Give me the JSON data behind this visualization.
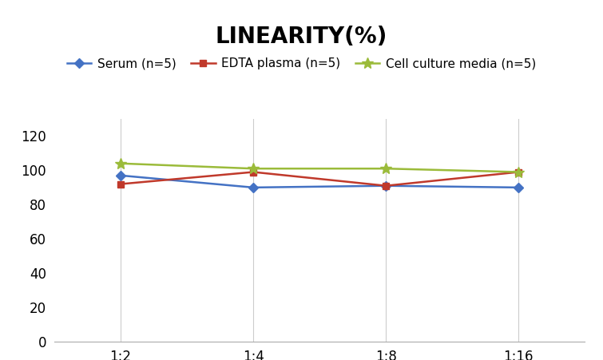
{
  "title": "LINEARITY(%)",
  "x_labels": [
    "1:2",
    "1:4",
    "1:8",
    "1:16"
  ],
  "x_positions": [
    0,
    1,
    2,
    3
  ],
  "series": [
    {
      "label": "Serum (n=5)",
      "values": [
        97,
        90,
        91,
        90
      ],
      "color": "#4472C4",
      "marker": "D",
      "markersize": 6,
      "linewidth": 1.8
    },
    {
      "label": "EDTA plasma (n=5)",
      "values": [
        92,
        99,
        91,
        99
      ],
      "color": "#C0392B",
      "marker": "s",
      "markersize": 6,
      "linewidth": 1.8
    },
    {
      "label": "Cell culture media (n=5)",
      "values": [
        104,
        101,
        101,
        99
      ],
      "color": "#9BBB3A",
      "marker": "*",
      "markersize": 10,
      "linewidth": 1.8
    }
  ],
  "ylim": [
    0,
    130
  ],
  "yticks": [
    0,
    20,
    40,
    60,
    80,
    100,
    120
  ],
  "title_fontsize": 20,
  "legend_fontsize": 11,
  "tick_fontsize": 12,
  "background_color": "#ffffff",
  "grid_color": "#cccccc"
}
